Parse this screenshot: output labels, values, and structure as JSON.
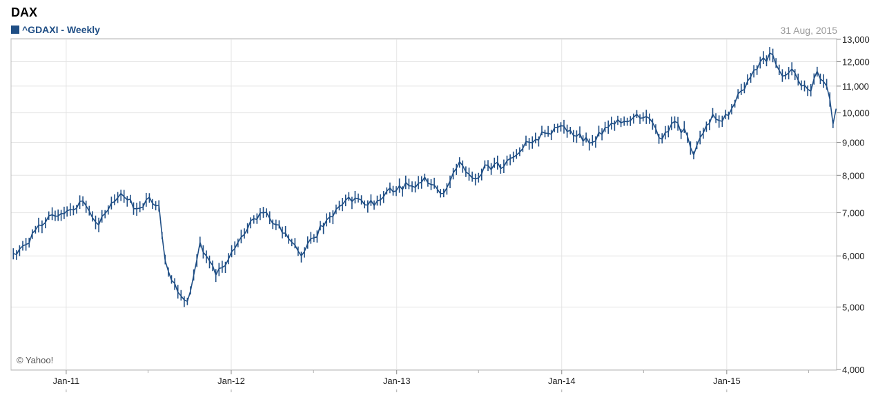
{
  "header": {
    "title": "DAX",
    "legend": "^GDAXI - Weekly",
    "date": "31 Aug, 2015",
    "credit": "© Yahoo!"
  },
  "colors": {
    "series": "#1f4e85",
    "grid": "#e4e4e4",
    "border": "#bdbdbd"
  },
  "chart_data": {
    "type": "line",
    "title": "DAX",
    "scale": "log",
    "ylim": [
      4000,
      13000
    ],
    "y_ticks": [
      4000,
      5000,
      6000,
      7000,
      8000,
      9000,
      10000,
      11000,
      12000,
      13000
    ],
    "y_tick_labels": [
      "4,000",
      "5,000",
      "6,000",
      "7,000",
      "8,000",
      "9,000",
      "10,000",
      "11,000",
      "12,000",
      "13,000"
    ],
    "x_tick_labels": [
      "Jan-11",
      "Jan-12",
      "Jan-13",
      "Jan-14",
      "Jan-15"
    ],
    "xlim": [
      "2010-09-01",
      "2015-09-01"
    ],
    "grid": true,
    "series": [
      {
        "name": "^GDAXI - Weekly",
        "points": [
          [
            "2010-09-06",
            6050
          ],
          [
            "2010-10-04",
            6250
          ],
          [
            "2010-11-01",
            6700
          ],
          [
            "2010-12-01",
            6950
          ],
          [
            "2011-01-03",
            7050
          ],
          [
            "2011-02-07",
            7300
          ],
          [
            "2011-03-14",
            6700
          ],
          [
            "2011-04-11",
            7250
          ],
          [
            "2011-05-02",
            7500
          ],
          [
            "2011-06-06",
            7100
          ],
          [
            "2011-07-04",
            7400
          ],
          [
            "2011-07-25",
            7200
          ],
          [
            "2011-08-08",
            5900
          ],
          [
            "2011-08-22",
            5500
          ],
          [
            "2011-09-12",
            5200
          ],
          [
            "2011-09-26",
            5100
          ],
          [
            "2011-10-10",
            5600
          ],
          [
            "2011-10-24",
            6300
          ],
          [
            "2011-11-07",
            6000
          ],
          [
            "2011-11-28",
            5600
          ],
          [
            "2011-12-19",
            5800
          ],
          [
            "2012-01-16",
            6300
          ],
          [
            "2012-02-13",
            6800
          ],
          [
            "2012-03-12",
            7000
          ],
          [
            "2012-04-16",
            6700
          ],
          [
            "2012-05-14",
            6300
          ],
          [
            "2012-06-04",
            6000
          ],
          [
            "2012-07-02",
            6400
          ],
          [
            "2012-08-06",
            6900
          ],
          [
            "2012-09-17",
            7400
          ],
          [
            "2012-10-22",
            7200
          ],
          [
            "2012-11-19",
            7300
          ],
          [
            "2012-12-17",
            7650
          ],
          [
            "2013-02-04",
            7700
          ],
          [
            "2013-03-04",
            7950
          ],
          [
            "2013-04-15",
            7500
          ],
          [
            "2013-05-20",
            8400
          ],
          [
            "2013-06-24",
            7900
          ],
          [
            "2013-07-15",
            8300
          ],
          [
            "2013-08-26",
            8250
          ],
          [
            "2013-09-23",
            8600
          ],
          [
            "2013-10-21",
            9000
          ],
          [
            "2013-11-25",
            9300
          ],
          [
            "2013-12-30",
            9550
          ],
          [
            "2014-02-03",
            9200
          ],
          [
            "2014-03-10",
            9000
          ],
          [
            "2014-04-14",
            9500
          ],
          [
            "2014-05-19",
            9700
          ],
          [
            "2014-06-16",
            9950
          ],
          [
            "2014-07-14",
            9800
          ],
          [
            "2014-08-11",
            9100
          ],
          [
            "2014-09-08",
            9700
          ],
          [
            "2014-10-06",
            9200
          ],
          [
            "2014-10-20",
            8600
          ],
          [
            "2014-11-10",
            9300
          ],
          [
            "2014-12-01",
            9950
          ],
          [
            "2014-12-22",
            9700
          ],
          [
            "2015-01-19",
            10350
          ],
          [
            "2015-02-16",
            11200
          ],
          [
            "2015-03-16",
            12000
          ],
          [
            "2015-04-13",
            12300
          ],
          [
            "2015-05-04",
            11400
          ],
          [
            "2015-05-25",
            11700
          ],
          [
            "2015-06-15",
            11000
          ],
          [
            "2015-07-06",
            10800
          ],
          [
            "2015-07-20",
            11600
          ],
          [
            "2015-08-10",
            11000
          ],
          [
            "2015-08-17",
            10500
          ],
          [
            "2015-08-24",
            9600
          ],
          [
            "2015-08-31",
            10150
          ]
        ]
      }
    ]
  }
}
